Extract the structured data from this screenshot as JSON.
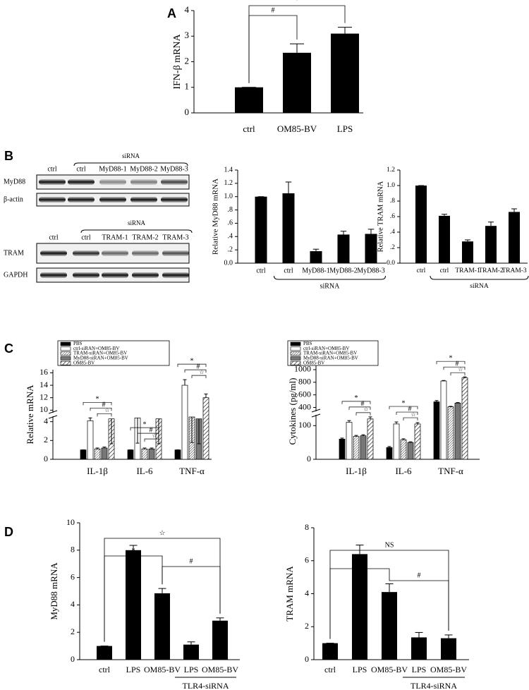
{
  "panels": [
    "A",
    "B",
    "C",
    "D"
  ],
  "blots": [
    {
      "lanes": [
        "ctrl",
        "ctrl",
        "MyD88-1",
        "MyD88-2",
        "MyD88-3"
      ],
      "group_label": "siRNA",
      "rows": [
        "MyD88",
        "β-actin"
      ]
    },
    {
      "lanes": [
        "ctrl",
        "ctrl",
        "TRAM-1",
        "TRAM-2",
        "TRAM-3"
      ],
      "group_label": "siRNA",
      "rows": [
        "TRAM",
        "GAPDH"
      ]
    }
  ],
  "chart_data": [
    {
      "type": "bar",
      "ylabel": "IFN-β mRNA",
      "categories": [
        "ctrl",
        "OM85-BV",
        "LPS"
      ],
      "values": [
        1,
        2.35,
        3.1
      ],
      "errors": [
        0,
        0.35,
        0.25
      ],
      "color": "#000000",
      "ylim": [
        0,
        4
      ],
      "yticks": [
        0,
        1,
        2,
        3,
        4
      ],
      "annotations": [
        "#",
        "*"
      ]
    },
    {
      "type": "bar",
      "ylabel": "Relative MyD88 mRNA",
      "categories": [
        "ctrl",
        "ctrl",
        "MyD88-1",
        "MyD88-2",
        "MyD88-3"
      ],
      "values": [
        1.0,
        1.05,
        0.18,
        0.43,
        0.44
      ],
      "errors": [
        0,
        0.17,
        0.03,
        0.05,
        0.07
      ],
      "color": "#000000",
      "ylim": [
        0,
        1.4
      ],
      "yticks": [
        {
          "value": 0,
          "label": "0.0"
        },
        {
          "value": 0.2,
          "label": ".2"
        },
        {
          "value": 0.4,
          "label": ".4"
        },
        {
          "value": 0.6,
          "label": ".6"
        },
        {
          "value": 0.8,
          "label": ".8"
        },
        {
          "value": 1,
          "label": "1.0"
        },
        1.2,
        1.4
      ],
      "group_label": "siRNA"
    },
    {
      "type": "bar",
      "ylabel": "Relative TRAM mRNA",
      "categories": [
        "ctrl",
        "ctrl",
        "TRAM-1",
        "TRAM-2",
        "TRAM-3"
      ],
      "values": [
        1.0,
        0.61,
        0.28,
        0.48,
        0.66
      ],
      "errors": [
        0,
        0.02,
        0.02,
        0.05,
        0.04
      ],
      "color": "#000000",
      "ylim": [
        0,
        1.2
      ],
      "yticks": [
        {
          "value": 0,
          "label": "0.0"
        },
        {
          "value": 0.2,
          "label": ".2"
        },
        {
          "value": 0.4,
          "label": ".4"
        },
        {
          "value": 0.6,
          "label": ".6"
        },
        {
          "value": 0.8,
          "label": ".8"
        },
        {
          "value": 1,
          "label": "1.0"
        },
        1.2
      ],
      "group_label": "siRNA"
    },
    {
      "type": "grouped_bar",
      "ylabel": "Relative mRNA",
      "categories": [
        "IL-1β",
        "IL-6",
        "TNF-α"
      ],
      "ylim": [
        0,
        16.5
      ],
      "ybreak": [
        4.5,
        9.7
      ],
      "yticks": [
        0,
        2,
        4,
        10,
        12,
        14,
        16
      ],
      "legend": "top-left",
      "series": [
        {
          "name": "PBS",
          "color": "#000000",
          "values": [
            1,
            1,
            1
          ],
          "errors": [
            0,
            0,
            0
          ]
        },
        {
          "name": "ctrl-siRAN+OM85-BV",
          "color": "#ffffff",
          "values": [
            4.1,
            4.4,
            14
          ],
          "errors": [
            0.3,
            0.3,
            0.9
          ]
        },
        {
          "name": "TRAM-siRAN+OM85-BV",
          "color": "#000000",
          "hatch": "dense",
          "values": [
            1.1,
            1.1,
            4.5
          ],
          "errors": [
            0.1,
            0.1,
            0.3
          ]
        },
        {
          "name": "MyD88-siRAN+OM85-BV",
          "color": "#777777",
          "values": [
            1.2,
            1.1,
            4.3
          ],
          "errors": [
            0.1,
            0.1,
            0.3
          ]
        },
        {
          "name": "OM85-BV",
          "color": "#000000",
          "hatch": "wide",
          "values": [
            4.3,
            4.3,
            12
          ],
          "errors": [
            0.3,
            0.3,
            0.6
          ]
        }
      ],
      "annotations": [
        [
          "*",
          "#",
          "☆"
        ],
        [
          "*",
          "#",
          "☆"
        ],
        [
          "*",
          "#",
          "☆"
        ]
      ]
    },
    {
      "type": "grouped_bar",
      "ylabel": "Cytokines (pg/ml)",
      "categories": [
        "IL-1β",
        "IL-6",
        "TNF-α"
      ],
      "ylim": [
        0,
        1100
      ],
      "ybreak": [
        130,
        350
      ],
      "yticks": [
        0,
        100,
        400,
        600,
        800,
        1000
      ],
      "legend": "top-left",
      "series": [
        {
          "name": "PBS",
          "color": "#000000",
          "values": [
            60,
            35,
            490
          ],
          "errors": [
            3,
            3,
            20
          ]
        },
        {
          "name": "ctrl-siRAN+OM85-BV",
          "color": "#ffffff",
          "values": [
            110,
            105,
            820
          ],
          "errors": [
            5,
            6,
            8
          ]
        },
        {
          "name": "TRAM-siRAN+OM85-BV",
          "color": "#000000",
          "hatch": "dense",
          "values": [
            68,
            58,
            410
          ],
          "errors": [
            3,
            3,
            8
          ]
        },
        {
          "name": "MyD88-siRAN+OM85-BV",
          "color": "#777777",
          "values": [
            70,
            50,
            470
          ],
          "errors": [
            3,
            2,
            8
          ]
        },
        {
          "name": "OM85-BV",
          "color": "#000000",
          "hatch": "wide",
          "values": [
            120,
            105,
            870
          ],
          "errors": [
            6,
            4,
            15
          ]
        }
      ],
      "annotations": [
        [
          "*",
          "#",
          "☆"
        ],
        [
          "*",
          "#",
          "☆"
        ],
        [
          "*",
          "#",
          "☆"
        ]
      ]
    },
    {
      "type": "bar",
      "ylabel": "MyD88 mRNA",
      "categories": [
        "ctrl",
        "LPS",
        "OM85-BV",
        "LPS",
        "OM85-BV"
      ],
      "values": [
        1,
        8.0,
        4.85,
        1.1,
        2.85
      ],
      "errors": [
        0,
        0.35,
        0.35,
        0.2,
        0.2
      ],
      "color": "#000000",
      "ylim": [
        0,
        10
      ],
      "yticks": [
        0,
        2,
        4,
        6,
        8,
        10
      ],
      "group_label": "TLR4-siRNA",
      "annotations": [
        "☆",
        "*",
        "#"
      ]
    },
    {
      "type": "bar",
      "ylabel": "TRAM mRNA",
      "categories": [
        "ctrl",
        "LPS",
        "OM85-BV",
        "LPS",
        "OM85-BV"
      ],
      "values": [
        1,
        6.4,
        4.1,
        1.35,
        1.3
      ],
      "errors": [
        0,
        0.55,
        0.5,
        0.3,
        0.2
      ],
      "color": "#000000",
      "ylim": [
        0,
        8
      ],
      "yticks": [
        0,
        2,
        4,
        6,
        8
      ],
      "group_label": "TLR4-siRNA",
      "annotations": [
        "NS",
        "*",
        "#"
      ]
    }
  ]
}
